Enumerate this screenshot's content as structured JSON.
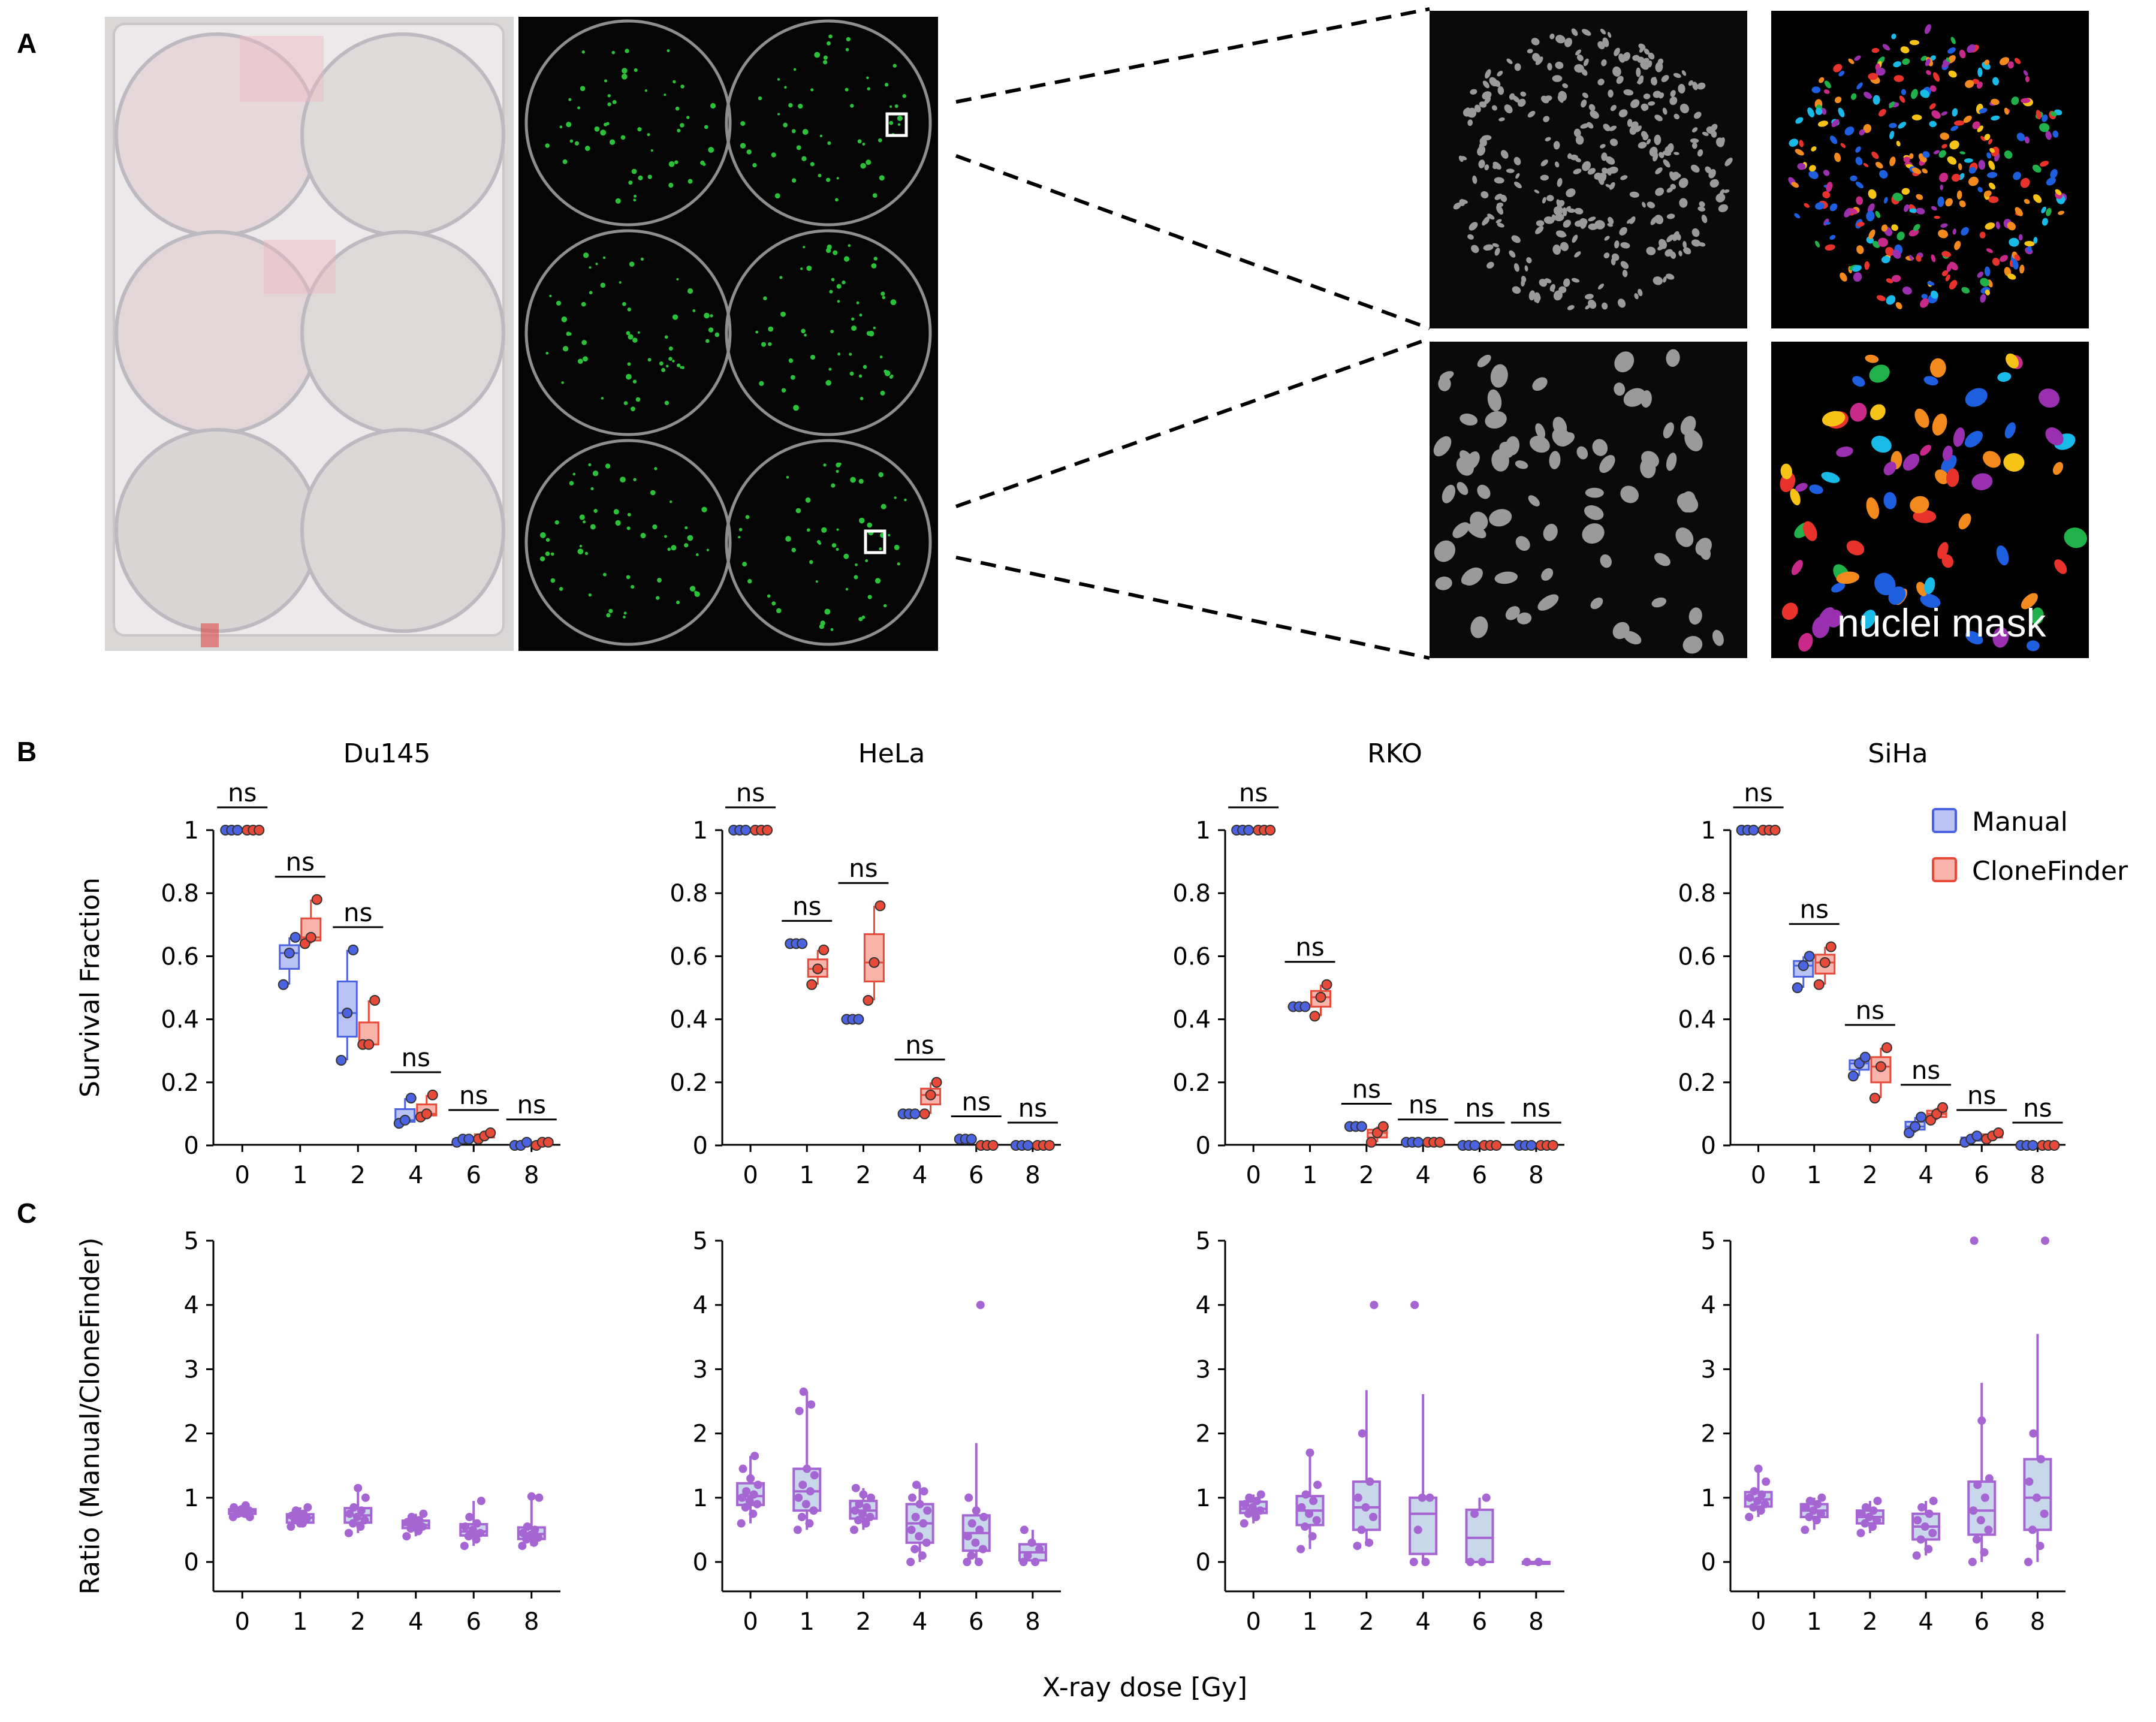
{
  "panels": {
    "a": "A",
    "b": "B",
    "c": "C"
  },
  "image_overlay_text": "nuclei mask",
  "legend": {
    "manual": "Manual",
    "clonefinder": "CloneFinder"
  },
  "colors": {
    "manual": "#4b63e0",
    "manual_fill": "#b9c3f4",
    "clonefinder": "#e84a3a",
    "clonefinder_fill": "#f8b4aa",
    "ratio": "#a565d2",
    "ratio_fill": "#c9d7eb"
  },
  "x_axis_label": "X-ray dose [Gy]",
  "chart_data": [
    {
      "type": "box",
      "panel": "B",
      "title": "Du145",
      "ylabel": "Survival Fraction",
      "ylim": [
        0,
        1
      ],
      "yticks": [
        "0",
        "0.2",
        "0.4",
        "0.6",
        "0.8",
        "1"
      ],
      "categories": [
        "0",
        "1",
        "2",
        "4",
        "6",
        "8"
      ],
      "significance": [
        "ns",
        "ns",
        "ns",
        "ns",
        "ns",
        "ns"
      ],
      "series": [
        {
          "name": "Manual",
          "points": [
            [
              1.0,
              1.0,
              1.0
            ],
            [
              0.51,
              0.61,
              0.66
            ],
            [
              0.27,
              0.42,
              0.62
            ],
            [
              0.07,
              0.08,
              0.15
            ],
            [
              0.01,
              0.02,
              0.02
            ],
            [
              0.0,
              0.0,
              0.01
            ]
          ]
        },
        {
          "name": "CloneFinder",
          "points": [
            [
              1.0,
              1.0,
              1.0
            ],
            [
              0.64,
              0.66,
              0.78
            ],
            [
              0.32,
              0.32,
              0.46
            ],
            [
              0.09,
              0.1,
              0.16
            ],
            [
              0.02,
              0.03,
              0.04
            ],
            [
              0.0,
              0.01,
              0.01
            ]
          ]
        }
      ]
    },
    {
      "type": "box",
      "panel": "B",
      "title": "HeLa",
      "ylim": [
        0,
        1
      ],
      "yticks": [
        "0",
        "0.2",
        "0.4",
        "0.6",
        "0.8",
        "1"
      ],
      "categories": [
        "0",
        "1",
        "2",
        "4",
        "6",
        "8"
      ],
      "significance": [
        "ns",
        "ns",
        "ns",
        "ns",
        "ns",
        "ns"
      ],
      "series": [
        {
          "name": "Manual",
          "points": [
            [
              1.0,
              1.0,
              1.0
            ],
            [
              0.64,
              0.64,
              0.64
            ],
            [
              0.4,
              0.4,
              0.4
            ],
            [
              0.1,
              0.1,
              0.1
            ],
            [
              0.02,
              0.02,
              0.02
            ],
            [
              0.0,
              0.0,
              0.0
            ]
          ]
        },
        {
          "name": "CloneFinder",
          "points": [
            [
              1.0,
              1.0,
              1.0
            ],
            [
              0.51,
              0.56,
              0.62
            ],
            [
              0.46,
              0.58,
              0.76
            ],
            [
              0.1,
              0.16,
              0.2
            ],
            [
              0.0,
              0.0,
              0.0
            ],
            [
              0.0,
              0.0,
              0.0
            ]
          ]
        }
      ]
    },
    {
      "type": "box",
      "panel": "B",
      "title": "RKO",
      "ylim": [
        0,
        1
      ],
      "yticks": [
        "0",
        "0.2",
        "0.4",
        "0.6",
        "0.8",
        "1"
      ],
      "categories": [
        "0",
        "1",
        "2",
        "4",
        "6",
        "8"
      ],
      "significance": [
        "ns",
        "ns",
        "ns",
        "ns",
        "ns",
        "ns"
      ],
      "series": [
        {
          "name": "Manual",
          "points": [
            [
              1.0,
              1.0,
              1.0
            ],
            [
              0.44,
              0.44,
              0.44
            ],
            [
              0.06,
              0.06,
              0.06
            ],
            [
              0.01,
              0.01,
              0.01
            ],
            [
              0.0,
              0.0,
              0.0
            ],
            [
              0.0,
              0.0,
              0.0
            ]
          ]
        },
        {
          "name": "CloneFinder",
          "points": [
            [
              1.0,
              1.0,
              1.0
            ],
            [
              0.41,
              0.47,
              0.51
            ],
            [
              0.01,
              0.04,
              0.06
            ],
            [
              0.01,
              0.01,
              0.01
            ],
            [
              0.0,
              0.0,
              0.0
            ],
            [
              0.0,
              0.0,
              0.0
            ]
          ]
        }
      ]
    },
    {
      "type": "box",
      "panel": "B",
      "title": "SiHa",
      "ylim": [
        0,
        1
      ],
      "yticks": [
        "0",
        "0.2",
        "0.4",
        "0.6",
        "0.8",
        "1"
      ],
      "categories": [
        "0",
        "1",
        "2",
        "4",
        "6",
        "8"
      ],
      "significance": [
        "ns",
        "ns",
        "ns",
        "ns",
        "ns",
        "ns"
      ],
      "series": [
        {
          "name": "Manual",
          "points": [
            [
              1.0,
              1.0,
              1.0
            ],
            [
              0.5,
              0.57,
              0.6
            ],
            [
              0.22,
              0.26,
              0.28
            ],
            [
              0.04,
              0.06,
              0.09
            ],
            [
              0.01,
              0.02,
              0.03
            ],
            [
              0.0,
              0.0,
              0.0
            ]
          ]
        },
        {
          "name": "CloneFinder",
          "points": [
            [
              1.0,
              1.0,
              1.0
            ],
            [
              0.51,
              0.58,
              0.63
            ],
            [
              0.15,
              0.25,
              0.31
            ],
            [
              0.08,
              0.1,
              0.12
            ],
            [
              0.02,
              0.03,
              0.04
            ],
            [
              0.0,
              0.0,
              0.0
            ]
          ]
        }
      ]
    },
    {
      "type": "box",
      "panel": "C",
      "ylabel": "Ratio (Manual/CloneFinder)",
      "ylim": [
        -0.5,
        5
      ],
      "yticks": [
        "0",
        "1",
        "2",
        "3",
        "4",
        "5"
      ],
      "categories": [
        "0",
        "1",
        "2",
        "4",
        "6",
        "8"
      ],
      "series": [
        {
          "name": "Du145",
          "points": [
            [
              0.7,
              0.75,
              0.78,
              0.8,
              0.82,
              0.85,
              0.88,
              0.75,
              0.7,
              0.82
            ],
            [
              0.55,
              0.6,
              0.65,
              0.68,
              0.7,
              0.72,
              0.75,
              0.8,
              0.85,
              0.6
            ],
            [
              0.45,
              0.55,
              0.6,
              0.65,
              0.7,
              0.75,
              0.8,
              0.85,
              1.0,
              1.15
            ],
            [
              0.4,
              0.48,
              0.52,
              0.55,
              0.6,
              0.62,
              0.65,
              0.7,
              0.75,
              0.55
            ],
            [
              0.25,
              0.35,
              0.4,
              0.45,
              0.5,
              0.55,
              0.6,
              0.7,
              0.95,
              0.45
            ],
            [
              0.25,
              0.3,
              0.35,
              0.38,
              0.42,
              0.45,
              0.5,
              0.55,
              1.0,
              1.02
            ]
          ]
        }
      ]
    },
    {
      "type": "box",
      "panel": "C",
      "ylim": [
        -0.5,
        5
      ],
      "yticks": [
        "0",
        "1",
        "2",
        "3",
        "4",
        "5"
      ],
      "categories": [
        "0",
        "1",
        "2",
        "4",
        "6",
        "8"
      ],
      "series": [
        {
          "name": "HeLa",
          "points": [
            [
              0.6,
              0.75,
              0.85,
              0.9,
              0.95,
              1.0,
              1.05,
              1.1,
              1.2,
              1.3,
              1.45,
              1.65
            ],
            [
              0.5,
              0.6,
              0.7,
              0.8,
              0.9,
              1.0,
              1.1,
              1.2,
              1.35,
              1.45,
              2.35,
              2.45,
              2.65
            ],
            [
              0.5,
              0.6,
              0.65,
              0.7,
              0.75,
              0.8,
              0.85,
              0.9,
              1.0,
              1.05,
              1.15
            ],
            [
              0.0,
              0.1,
              0.2,
              0.3,
              0.4,
              0.5,
              0.6,
              0.7,
              0.8,
              0.9,
              1.0,
              1.1,
              1.2
            ],
            [
              0.0,
              0.0,
              0.1,
              0.2,
              0.3,
              0.4,
              0.5,
              0.6,
              0.7,
              0.8,
              1.0,
              4.0
            ],
            [
              0.0,
              0.0,
              0.1,
              0.2,
              0.3,
              0.5
            ]
          ]
        }
      ]
    },
    {
      "type": "box",
      "panel": "C",
      "ylim": [
        -0.5,
        5
      ],
      "yticks": [
        "0",
        "1",
        "2",
        "3",
        "4",
        "5"
      ],
      "categories": [
        "0",
        "1",
        "2",
        "4",
        "6",
        "8"
      ],
      "series": [
        {
          "name": "RKO",
          "points": [
            [
              0.6,
              0.7,
              0.75,
              0.8,
              0.85,
              0.9,
              0.95,
              1.0,
              1.05,
              0.8
            ],
            [
              0.2,
              0.4,
              0.55,
              0.65,
              0.75,
              0.85,
              0.95,
              1.05,
              1.2,
              1.7
            ],
            [
              0.25,
              0.3,
              0.5,
              0.7,
              0.85,
              1.0,
              1.25,
              2.0,
              4.0
            ],
            [
              0.0,
              0.0,
              0.5,
              1.0,
              1.0,
              4.0
            ],
            [
              0.0,
              0.0,
              0.75,
              1.0
            ],
            [
              0.0,
              0.0
            ]
          ]
        }
      ]
    },
    {
      "type": "box",
      "panel": "C",
      "ylim": [
        -0.5,
        5
      ],
      "yticks": [
        "0",
        "1",
        "2",
        "3",
        "4",
        "5"
      ],
      "categories": [
        "0",
        "1",
        "2",
        "4",
        "6",
        "8"
      ],
      "series": [
        {
          "name": "SiHa",
          "points": [
            [
              0.7,
              0.8,
              0.85,
              0.9,
              0.95,
              1.0,
              1.05,
              1.1,
              1.25,
              1.45
            ],
            [
              0.5,
              0.65,
              0.7,
              0.75,
              0.8,
              0.85,
              0.9,
              0.95,
              1.0
            ],
            [
              0.45,
              0.55,
              0.6,
              0.65,
              0.7,
              0.75,
              0.8,
              0.85,
              0.95
            ],
            [
              0.1,
              0.2,
              0.35,
              0.45,
              0.55,
              0.65,
              0.75,
              0.85,
              0.95
            ],
            [
              0.0,
              0.15,
              0.35,
              0.5,
              0.65,
              0.8,
              1.0,
              1.2,
              1.3,
              2.2,
              5.0
            ],
            [
              0.0,
              0.25,
              0.5,
              0.75,
              1.0,
              1.25,
              1.6,
              2.0,
              5.0
            ]
          ]
        }
      ]
    }
  ]
}
